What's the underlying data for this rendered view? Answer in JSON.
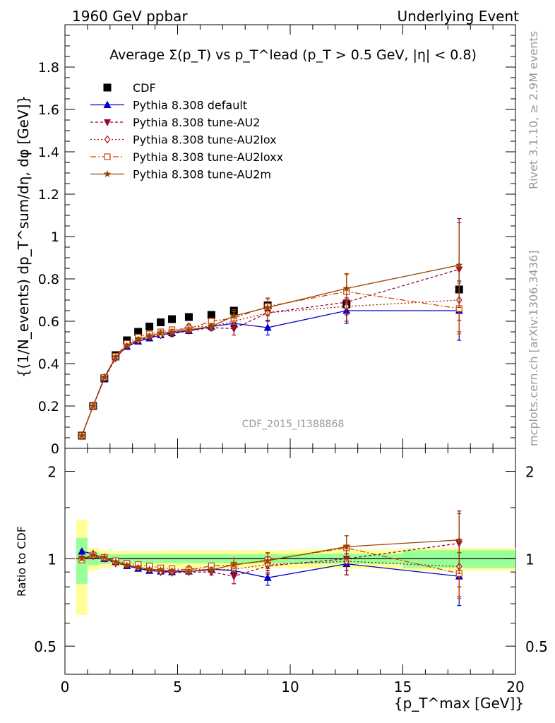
{
  "header": {
    "left": "1960 GeV ppbar",
    "right": "Underlying Event"
  },
  "side_text": {
    "rivet": "Rivet 3.1.10, ≥ 2.9M events",
    "mcplots": "mcplots.cern.ch [arXiv:1306.3436]"
  },
  "watermark": "CDF_2015_I1388868",
  "legend_entries": [
    {
      "label": "CDF",
      "color": "#000000",
      "marker": "square",
      "dash": ""
    },
    {
      "label": "Pythia 8.308 default",
      "color": "#0000cc",
      "marker": "triangle",
      "dash": ""
    },
    {
      "label": "Pythia 8.308 tune-AU2",
      "color": "#990033",
      "marker": "triangle-down",
      "dash": "4,3"
    },
    {
      "label": "Pythia 8.308 tune-AU2lox",
      "color": "#aa1111",
      "marker": "diamond-open",
      "dash": "2,3"
    },
    {
      "label": "Pythia 8.308 tune-AU2loxx",
      "color": "#cc4400",
      "marker": "square-open",
      "dash": "8,3,2,3"
    },
    {
      "label": "Pythia 8.308 tune-AU2m",
      "color": "#994400",
      "marker": "star",
      "dash": ""
    }
  ],
  "chart_data": [
    {
      "type": "line",
      "panel": "main",
      "title": "Average Σ(p_T) vs p_T^lead (p_T > 0.5 GeV, |η| < 0.8)",
      "xlabel": "{p_T^max [GeV]}",
      "ylabel": "{(1/N_events) dp_T^sum/dη, dφ [GeV]}",
      "xlim": [
        0,
        20
      ],
      "ylim": [
        0,
        2.0
      ],
      "yticks": [
        0,
        0.2,
        0.4,
        0.6,
        0.8,
        1,
        1.2,
        1.4,
        1.6,
        1.8
      ],
      "ytick_labels": [
        "0",
        "0.2",
        "0.4",
        "0.6",
        "0.8",
        "1",
        "1.2",
        "1.4",
        "1.6",
        "1.8"
      ],
      "legend_position": "top-left",
      "x": [
        0.75,
        1.25,
        1.75,
        2.25,
        2.75,
        3.25,
        3.75,
        4.25,
        4.75,
        5.5,
        6.5,
        7.5,
        9.0,
        12.5,
        17.5
      ],
      "series": [
        {
          "name": "CDF",
          "values": [
            0.06,
            0.2,
            0.33,
            0.44,
            0.51,
            0.55,
            0.575,
            0.595,
            0.61,
            0.62,
            0.63,
            0.65,
            0.675,
            0.68,
            0.75
          ]
        },
        {
          "name": "Pythia 8.308 default",
          "values": [
            0.06,
            0.2,
            0.33,
            0.43,
            0.48,
            0.505,
            0.52,
            0.535,
            0.545,
            0.555,
            0.575,
            0.59,
            0.57,
            0.65,
            0.65
          ],
          "err": [
            0.003,
            0.005,
            0.006,
            0.008,
            0.008,
            0.009,
            0.01,
            0.01,
            0.01,
            0.012,
            0.015,
            0.02,
            0.035,
            0.06,
            0.14
          ]
        },
        {
          "name": "Pythia 8.308 tune-AU2",
          "values": [
            0.06,
            0.2,
            0.33,
            0.425,
            0.485,
            0.51,
            0.525,
            0.535,
            0.54,
            0.555,
            0.57,
            0.565,
            0.64,
            0.69,
            0.845
          ],
          "err": [
            0.003,
            0.005,
            0.006,
            0.008,
            0.008,
            0.009,
            0.01,
            0.01,
            0.012,
            0.012,
            0.015,
            0.03,
            0.04,
            0.06,
            0.24
          ]
        },
        {
          "name": "Pythia 8.308 tune-AU2lox",
          "values": [
            0.06,
            0.2,
            0.335,
            0.43,
            0.49,
            0.51,
            0.53,
            0.535,
            0.55,
            0.575,
            0.575,
            0.6,
            0.64,
            0.67,
            0.7
          ],
          "err": [
            0.003,
            0.005,
            0.006,
            0.008,
            0.008,
            0.009,
            0.01,
            0.01,
            0.012,
            0.012,
            0.015,
            0.03,
            0.04,
            0.07,
            0.15
          ]
        },
        {
          "name": "Pythia 8.308 tune-AU2loxx",
          "values": [
            0.06,
            0.2,
            0.335,
            0.435,
            0.495,
            0.525,
            0.54,
            0.55,
            0.56,
            0.565,
            0.6,
            0.615,
            0.67,
            0.74,
            0.66
          ],
          "err": [
            0.003,
            0.005,
            0.006,
            0.008,
            0.008,
            0.009,
            0.01,
            0.01,
            0.012,
            0.012,
            0.015,
            0.03,
            0.04,
            0.08,
            0.12
          ]
        },
        {
          "name": "Pythia 8.308 tune-AU2m",
          "values": [
            0.06,
            0.2,
            0.335,
            0.43,
            0.485,
            0.515,
            0.53,
            0.545,
            0.55,
            0.56,
            0.575,
            0.625,
            0.665,
            0.755,
            0.865
          ],
          "err": [
            0.003,
            0.005,
            0.006,
            0.008,
            0.008,
            0.009,
            0.01,
            0.01,
            0.012,
            0.012,
            0.015,
            0.03,
            0.04,
            0.07,
            0.2
          ]
        }
      ]
    },
    {
      "type": "line",
      "panel": "ratio",
      "ylabel": "Ratio to CDF",
      "xlabel": "{p_T^max [GeV]}",
      "xlim": [
        0,
        20
      ],
      "ylim": [
        0.4,
        2.4
      ],
      "yscale": "log",
      "yticks": [
        0.5,
        1,
        2
      ],
      "ytick_labels": [
        "0.5",
        "1",
        "2"
      ],
      "xticks": [
        0,
        5,
        10,
        15,
        20
      ],
      "xtick_labels": [
        "0",
        "5",
        "10",
        "15",
        "20"
      ],
      "x": [
        0.75,
        1.25,
        1.75,
        2.25,
        2.75,
        3.25,
        3.75,
        4.25,
        4.75,
        5.5,
        6.5,
        7.5,
        9.0,
        12.5,
        17.5
      ],
      "data_band": {
        "edges": [
          0.5,
          1.0,
          1.5,
          2.0,
          2.5,
          3.0,
          3.5,
          4.0,
          4.5,
          5.0,
          6.0,
          7.0,
          8.0,
          10.0,
          15.0,
          20.0
        ],
        "stat_rel": [
          0.18,
          0.05,
          0.04,
          0.035,
          0.035,
          0.035,
          0.035,
          0.035,
          0.035,
          0.035,
          0.035,
          0.035,
          0.035,
          0.04,
          0.07
        ],
        "total_rel": [
          0.36,
          0.09,
          0.07,
          0.065,
          0.065,
          0.065,
          0.065,
          0.065,
          0.07,
          0.07,
          0.07,
          0.07,
          0.07,
          0.075,
          0.09
        ]
      },
      "series": [
        {
          "name": "Pythia 8.308 default",
          "values": [
            1.06,
            1.04,
            1.0,
            0.975,
            0.945,
            0.925,
            0.91,
            0.905,
            0.9,
            0.905,
            0.92,
            0.91,
            0.86,
            0.96,
            0.87
          ],
          "err": [
            0.01,
            0.01,
            0.01,
            0.01,
            0.01,
            0.01,
            0.01,
            0.01,
            0.01,
            0.015,
            0.02,
            0.03,
            0.05,
            0.08,
            0.18
          ]
        },
        {
          "name": "Pythia 8.308 tune-AU2",
          "values": [
            1.0,
            1.02,
            1.0,
            0.965,
            0.95,
            0.93,
            0.915,
            0.9,
            0.895,
            0.9,
            0.9,
            0.87,
            0.945,
            1.0,
            1.13
          ],
          "err": [
            0.01,
            0.01,
            0.01,
            0.01,
            0.01,
            0.01,
            0.01,
            0.01,
            0.01,
            0.015,
            0.02,
            0.05,
            0.06,
            0.09,
            0.33
          ]
        },
        {
          "name": "Pythia 8.308 tune-AU2lox",
          "values": [
            1.0,
            1.03,
            1.01,
            0.975,
            0.96,
            0.935,
            0.92,
            0.905,
            0.905,
            0.925,
            0.915,
            0.92,
            0.955,
            0.98,
            0.94
          ],
          "err": [
            0.01,
            0.01,
            0.01,
            0.01,
            0.01,
            0.01,
            0.01,
            0.01,
            0.01,
            0.015,
            0.02,
            0.05,
            0.06,
            0.1,
            0.2
          ]
        },
        {
          "name": "Pythia 8.308 tune-AU2loxx",
          "values": [
            0.99,
            1.03,
            1.01,
            0.985,
            0.965,
            0.955,
            0.945,
            0.93,
            0.925,
            0.915,
            0.945,
            0.95,
            0.99,
            1.09,
            0.89
          ],
          "err": [
            0.01,
            0.01,
            0.01,
            0.01,
            0.01,
            0.01,
            0.01,
            0.01,
            0.01,
            0.015,
            0.02,
            0.05,
            0.06,
            0.11,
            0.16
          ]
        },
        {
          "name": "Pythia 8.308 tune-AU2m",
          "values": [
            1.0,
            1.03,
            1.01,
            0.975,
            0.95,
            0.935,
            0.92,
            0.915,
            0.91,
            0.905,
            0.915,
            0.955,
            0.985,
            1.1,
            1.16
          ],
          "err": [
            0.01,
            0.01,
            0.01,
            0.01,
            0.01,
            0.01,
            0.01,
            0.01,
            0.01,
            0.015,
            0.02,
            0.05,
            0.06,
            0.1,
            0.27
          ]
        }
      ]
    }
  ]
}
